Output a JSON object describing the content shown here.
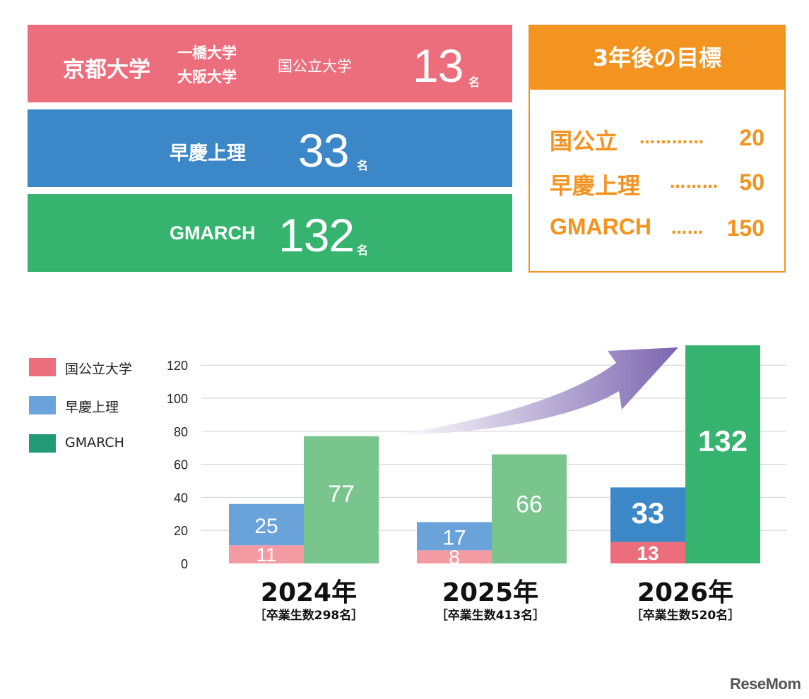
{
  "top_panel": {
    "national": {
      "names": [
        "京都大学",
        "一橋大学",
        "大阪大学",
        "国公立大学"
      ],
      "value": "13",
      "unit": "名"
    },
    "soukei": {
      "label": "早慶上理",
      "value": "33",
      "unit": "名"
    },
    "gmarch": {
      "label": "GMARCH",
      "value": "132",
      "unit": "名"
    }
  },
  "goal_panel": {
    "title": "3年後の目標",
    "rows": [
      {
        "label": "国公立",
        "dots": "………… ",
        "value": "20"
      },
      {
        "label": "早慶上理",
        "dots": "……… ",
        "value": "50"
      },
      {
        "label": "GMARCH",
        "dots": "…… ",
        "value": "150"
      }
    ]
  },
  "legend": [
    {
      "label": "国公立大学",
      "color": "#ec6d7c"
    },
    {
      "label": "早慶上理",
      "color": "#6aa3d9"
    },
    {
      "label": "GMARCH",
      "color": "#239a76"
    }
  ],
  "chart_data": {
    "type": "bar",
    "stacked_series": [
      "国公立大学",
      "早慶上理"
    ],
    "categories": [
      "2024年",
      "2025年",
      "2026年"
    ],
    "category_notes": [
      "［卒業生数298名］",
      "［卒業生数413名］",
      "［卒業生数520名］"
    ],
    "series": [
      {
        "name": "国公立大学",
        "values": [
          11,
          8,
          13
        ],
        "colors": [
          "#f39aa3",
          "#f39aa3",
          "#ec6d7c"
        ]
      },
      {
        "name": "早慶上理",
        "values": [
          25,
          17,
          33
        ],
        "colors": [
          "#6aa3d9",
          "#6aa3d9",
          "#3b87c8"
        ]
      },
      {
        "name": "GMARCH",
        "values": [
          77,
          66,
          132
        ],
        "colors": [
          "#7ac48d",
          "#7ac48d",
          "#36b46f"
        ]
      }
    ],
    "data_labels": {
      "stack_top": [
        "25",
        "17",
        "33"
      ],
      "stack_bottom": [
        "11",
        "8",
        "13"
      ],
      "gmarch": [
        "77",
        "66",
        "132"
      ]
    },
    "yticks": [
      0,
      20,
      40,
      60,
      80,
      100,
      120
    ],
    "ylim": [
      0,
      130
    ],
    "grid": true,
    "legend_position": "left",
    "trend_arrow": true
  },
  "brand": "ReseMom"
}
